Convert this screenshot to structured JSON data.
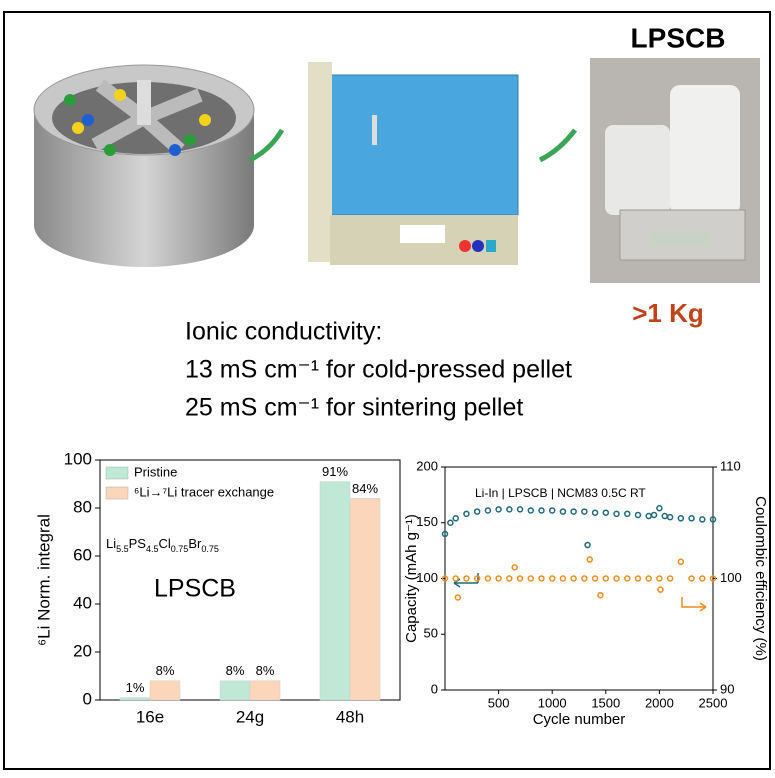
{
  "header": {
    "label": "LPSCB",
    "mass": ">1 Kg"
  },
  "conductivity": {
    "title": "Ionic conductivity:",
    "lines": [
      "13 mS cm⁻¹ for cold-pressed pellet",
      "25 mS cm⁻¹ for sintering pellet"
    ]
  },
  "chart_data": [
    {
      "type": "bar",
      "y_label": "⁶Li Norm. integral",
      "annotation": "LPSCB",
      "formula": [
        "Li",
        "5.5",
        "PS",
        "4.5",
        "Cl",
        "0.75",
        "Br",
        "0.75"
      ],
      "categories": [
        "16e",
        "24g",
        "48h"
      ],
      "series": [
        {
          "name": "Pristine",
          "color": "#bfe8d6",
          "values": [
            1,
            8,
            91
          ],
          "value_labels": [
            "1%",
            "8%",
            "91%"
          ]
        },
        {
          "name": "⁶Li→⁷Li tracer exchange",
          "color": "#fbd6bb",
          "values": [
            8,
            8,
            84
          ],
          "value_labels": [
            "8%",
            "8%",
            "84%"
          ]
        }
      ],
      "ylim": [
        0,
        100
      ],
      "yticks": [
        0,
        20,
        40,
        60,
        80,
        100
      ],
      "legend": "upper-left",
      "grid": false
    },
    {
      "type": "scatter",
      "annotation": "Li-In | LPSCB | NCM83  0.5C RT",
      "x_label": "Cycle number",
      "y_label": "Capacity (mAh g⁻¹)",
      "y2_label": "Coulombic efficiency (%)",
      "xlim": [
        0,
        2500
      ],
      "xticks": [
        500,
        1000,
        1500,
        2000,
        2500
      ],
      "ylim": [
        0,
        200
      ],
      "yticks": [
        0,
        50,
        100,
        150,
        200
      ],
      "y2lim": [
        90,
        110
      ],
      "y2ticks": [
        90,
        100,
        110
      ],
      "grid": false,
      "series": [
        {
          "color": "#1e6a7c",
          "x": [
            0,
            50,
            100,
            200,
            300,
            400,
            500,
            600,
            700,
            800,
            900,
            1000,
            1100,
            1200,
            1300,
            1330,
            1400,
            1500,
            1600,
            1700,
            1800,
            1900,
            1950,
            2000,
            2050,
            2100,
            2200,
            2300,
            2400,
            2500
          ],
          "values": [
            140,
            150,
            154,
            158,
            160,
            161,
            162,
            162,
            162,
            161,
            161,
            161,
            160,
            160,
            160,
            130,
            159,
            159,
            158,
            158,
            157,
            156,
            157,
            163,
            156,
            155,
            154,
            154,
            153,
            153
          ]
        },
        {
          "color": "#f28c1c",
          "axis": "y2",
          "x": [
            0,
            100,
            120,
            200,
            300,
            400,
            500,
            600,
            650,
            700,
            800,
            900,
            1000,
            1100,
            1200,
            1300,
            1350,
            1400,
            1450,
            1500,
            1600,
            1700,
            1800,
            1900,
            2000,
            2010,
            2100,
            2200,
            2300,
            2400,
            2500
          ],
          "values": [
            100,
            100,
            98.3,
            100,
            100,
            100,
            100,
            100,
            101,
            100,
            100,
            100,
            100,
            100,
            100,
            100,
            101.7,
            100,
            98.5,
            100,
            100,
            100,
            100,
            100,
            100,
            99,
            100,
            101.5,
            100,
            100,
            100
          ]
        }
      ]
    }
  ]
}
